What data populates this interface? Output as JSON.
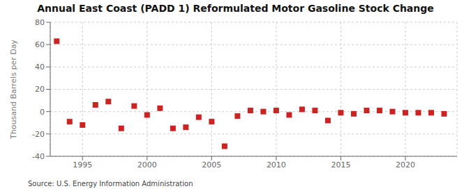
{
  "chart_data": {
    "type": "scatter",
    "title": "Annual East Coast (PADD 1) Reformulated Motor Gasoline Stock Change",
    "ylabel": "Thousand Barrels per Day",
    "source": "Source: U.S. Energy Information Administration",
    "x": [
      1993,
      1994,
      1995,
      1996,
      1997,
      1998,
      1999,
      2000,
      2001,
      2002,
      2003,
      2004,
      2005,
      2006,
      2007,
      2008,
      2009,
      2010,
      2011,
      2012,
      2013,
      2014,
      2015,
      2016,
      2017,
      2018,
      2019,
      2020,
      2021,
      2022,
      2023
    ],
    "values": [
      63,
      -9,
      -12,
      6,
      9,
      -15,
      5,
      -3,
      3,
      -15,
      -14,
      -5,
      -9,
      -31,
      -4,
      1,
      0,
      1,
      -3,
      2,
      1,
      -8,
      -1,
      -2,
      1,
      1,
      0,
      -1,
      -1,
      -1,
      -2
    ],
    "color": "#cc2222",
    "marker": "square",
    "xlim": [
      1992.5,
      2024
    ],
    "xticks": [
      1995,
      2000,
      2005,
      2010,
      2015,
      2020
    ],
    "ylim": [
      -40,
      80
    ],
    "yticks": [
      -40,
      -20,
      0,
      20,
      40,
      60,
      80
    ],
    "grid": true
  }
}
